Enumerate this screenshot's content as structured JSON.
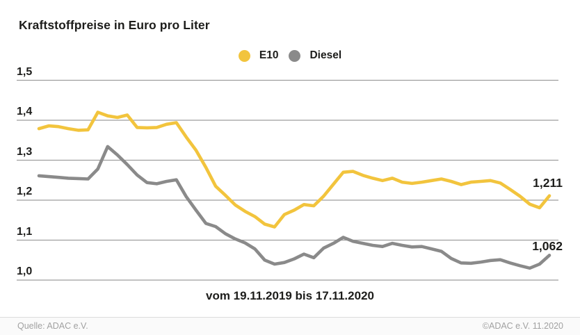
{
  "title": "Kraftstoffpreise in Euro pro Liter",
  "legend": [
    {
      "label": "E10",
      "color": "#F2C43D"
    },
    {
      "label": "Diesel",
      "color": "#8A8A8A"
    }
  ],
  "footer": {
    "source": "Quelle: ADAC e.V.",
    "copyright": "©ADAC e.V. 11.2020"
  },
  "colors": {
    "e10": "#F2C43D",
    "diesel": "#8A8A8A",
    "gridline": "#9e9e9e",
    "text": "#1d1d1b",
    "footer_text": "#a1a1a1"
  },
  "chart_data": {
    "type": "line",
    "title": "Kraftstoffpreise in Euro pro Liter",
    "xlabel": "vom 19.11.2019 bis 17.11.2020",
    "ylabel": "",
    "ylim": [
      1.0,
      1.5
    ],
    "grid": "horizontal",
    "legend_position": "top-center",
    "yticks": {
      "values": [
        1.5,
        1.4,
        1.3,
        1.2,
        1.1,
        1.0
      ],
      "labels": [
        "1,5",
        "1,4",
        "1,3",
        "1,2",
        "1,1",
        "1,0"
      ]
    },
    "x_range": {
      "start": "19.11.2019",
      "end": "17.11.2020",
      "unit": "week",
      "points": 53
    },
    "end_labels": {
      "e10": "1,211",
      "diesel": "1,062"
    },
    "series": [
      {
        "name": "E10",
        "color": "#F2C43D",
        "values": [
          1.379,
          1.386,
          1.384,
          1.379,
          1.375,
          1.376,
          1.42,
          1.411,
          1.407,
          1.413,
          1.382,
          1.381,
          1.382,
          1.39,
          1.394,
          1.358,
          1.325,
          1.282,
          1.235,
          1.212,
          1.188,
          1.172,
          1.159,
          1.14,
          1.133,
          1.164,
          1.175,
          1.189,
          1.186,
          1.21,
          1.24,
          1.27,
          1.272,
          1.262,
          1.255,
          1.249,
          1.255,
          1.245,
          1.242,
          1.245,
          1.249,
          1.253,
          1.247,
          1.239,
          1.245,
          1.247,
          1.249,
          1.243,
          1.227,
          1.21,
          1.19,
          1.181,
          1.211
        ]
      },
      {
        "name": "Diesel",
        "color": "#8A8A8A",
        "values": [
          1.261,
          1.259,
          1.257,
          1.255,
          1.254,
          1.253,
          1.278,
          1.334,
          1.313,
          1.289,
          1.263,
          1.244,
          1.241,
          1.247,
          1.251,
          1.209,
          1.175,
          1.142,
          1.134,
          1.116,
          1.103,
          1.093,
          1.078,
          1.05,
          1.04,
          1.044,
          1.053,
          1.065,
          1.056,
          1.08,
          1.092,
          1.107,
          1.097,
          1.092,
          1.087,
          1.084,
          1.092,
          1.087,
          1.083,
          1.084,
          1.078,
          1.072,
          1.054,
          1.043,
          1.042,
          1.045,
          1.049,
          1.051,
          1.043,
          1.036,
          1.03,
          1.04,
          1.062
        ]
      }
    ]
  }
}
